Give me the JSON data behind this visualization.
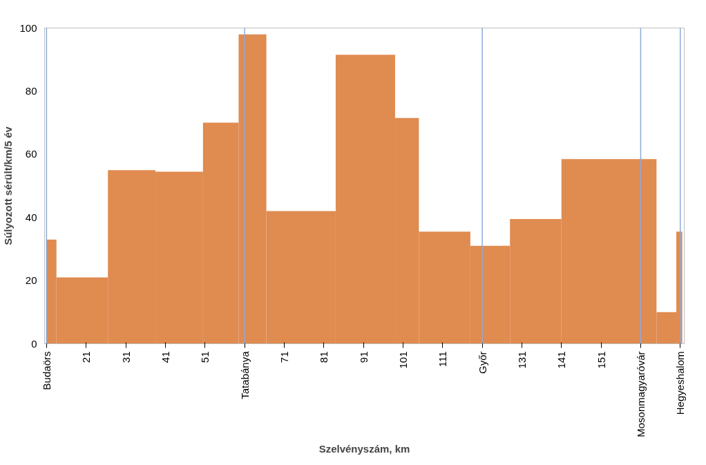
{
  "chart_data": {
    "type": "histogram",
    "xlabel": "Szelvényszám, km",
    "ylabel": "Súlyozott sérült/km/5 év",
    "bins": [
      11,
      13.5,
      26.5,
      38.5,
      50.5,
      59.5,
      66.5,
      84,
      99,
      105,
      118,
      128,
      141,
      165,
      170,
      171.5
    ],
    "values": [
      33,
      21,
      55,
      54.5,
      70,
      98,
      42,
      91.5,
      71.5,
      35.5,
      31,
      39.5,
      58.5,
      10,
      35.5
    ],
    "color": "#e08b50",
    "xlim": [
      10.5,
      172
    ],
    "ylim": [
      0,
      100
    ],
    "xticks": [
      {
        "value": 11,
        "label": "Budaörs"
      },
      21,
      31,
      41,
      51,
      {
        "value": 61,
        "label": "Tatabánya"
      },
      71,
      81,
      91,
      101,
      111,
      {
        "value": 121,
        "label": "Győr"
      },
      131,
      141,
      151,
      {
        "value": 161,
        "label": "Mosonmagyaróvár"
      },
      {
        "value": 171,
        "label": "Hegyeshalom"
      }
    ],
    "yticks": [
      0,
      20,
      40,
      60,
      80,
      100
    ],
    "ref_lines": [
      {
        "axis": "x",
        "value": 11,
        "color": "#8eaadb"
      },
      {
        "axis": "x",
        "value": 61,
        "color": "#8eaadb"
      },
      {
        "axis": "x",
        "value": 121,
        "color": "#8eaadb"
      },
      {
        "axis": "x",
        "value": 161,
        "color": "#8eaadb"
      },
      {
        "axis": "x",
        "value": 171,
        "color": "#8eaadb"
      }
    ],
    "grid": false
  }
}
